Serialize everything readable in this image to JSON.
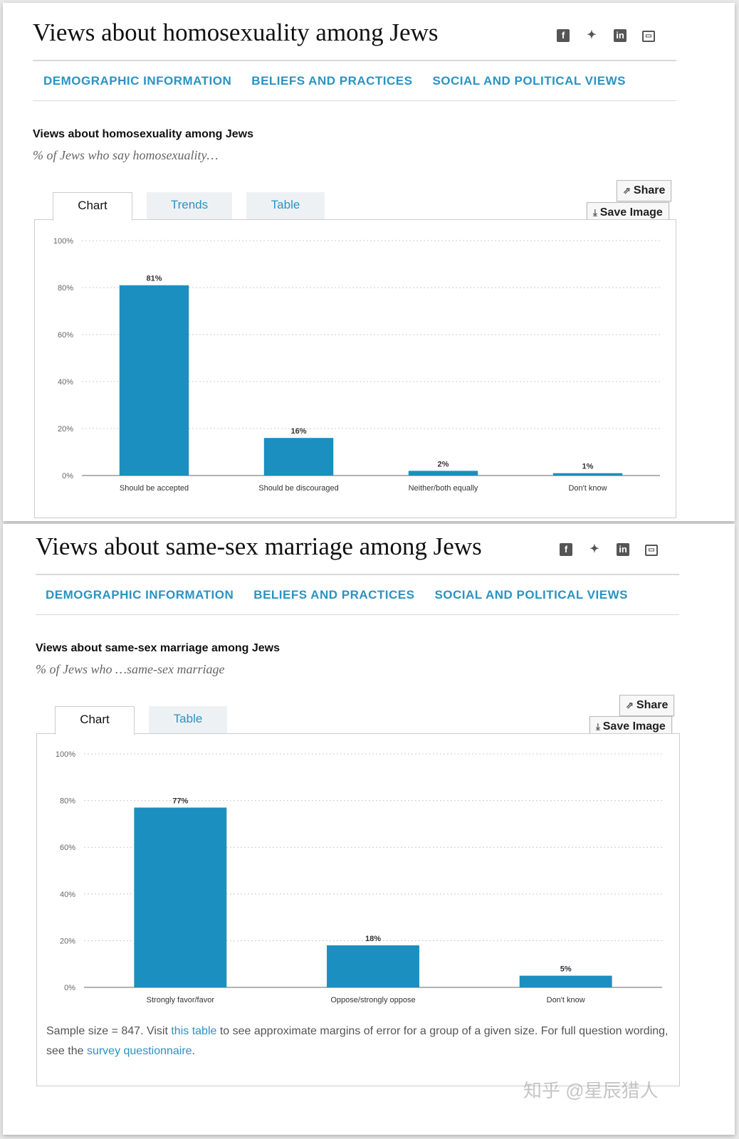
{
  "colors": {
    "accent": "#2a93c2",
    "bar": "#1a8fc0"
  },
  "share_label": "Share",
  "save_label": "Save Image",
  "nav": [
    "DEMOGRAPHIC INFORMATION",
    "BELIEFS AND PRACTICES",
    "SOCIAL AND POLITICAL VIEWS"
  ],
  "social_icons": [
    "facebook-icon",
    "twitter-icon",
    "linkedin-icon",
    "print-icon"
  ],
  "panel1": {
    "page_title": "Views about homosexuality among Jews",
    "chart_title": "Views about homosexuality among Jews",
    "chart_subtitle": "% of Jews who say homosexuality…",
    "tabs": [
      "Chart",
      "Trends",
      "Table"
    ]
  },
  "panel2": {
    "page_title": "Views about same-sex marriage among Jews",
    "chart_title": "Views about same-sex marriage among Jews",
    "chart_subtitle": "% of Jews who …same-sex marriage",
    "tabs": [
      "Chart",
      "Table"
    ],
    "note_pre": "Sample size = 847. Visit ",
    "note_link1": "this table",
    "note_mid": " to see approximate margins of error for a group of a given size. For full question wording, see the ",
    "note_link2": "survey questionnaire",
    "note_post": "."
  },
  "watermark": "知乎 @星辰猎人",
  "chart_data": [
    {
      "type": "bar",
      "title": "Views about homosexuality among Jews",
      "subtitle": "% of Jews who say homosexuality…",
      "categories": [
        "Should be accepted",
        "Should be discouraged",
        "Neither/both equally",
        "Don't know"
      ],
      "values": [
        81,
        16,
        2,
        1
      ],
      "data_labels": [
        "81%",
        "16%",
        "2%",
        "1%"
      ],
      "yticks": [
        "0%",
        "20%",
        "40%",
        "60%",
        "80%",
        "100%"
      ],
      "ylim": [
        0,
        100
      ],
      "grid": true
    },
    {
      "type": "bar",
      "title": "Views about same-sex marriage among Jews",
      "subtitle": "% of Jews who …same-sex marriage",
      "categories": [
        "Strongly favor/favor",
        "Oppose/strongly oppose",
        "Don't know"
      ],
      "values": [
        77,
        18,
        5
      ],
      "data_labels": [
        "77%",
        "18%",
        "5%"
      ],
      "yticks": [
        "0%",
        "20%",
        "40%",
        "60%",
        "80%",
        "100%"
      ],
      "ylim": [
        0,
        100
      ],
      "grid": true
    }
  ]
}
